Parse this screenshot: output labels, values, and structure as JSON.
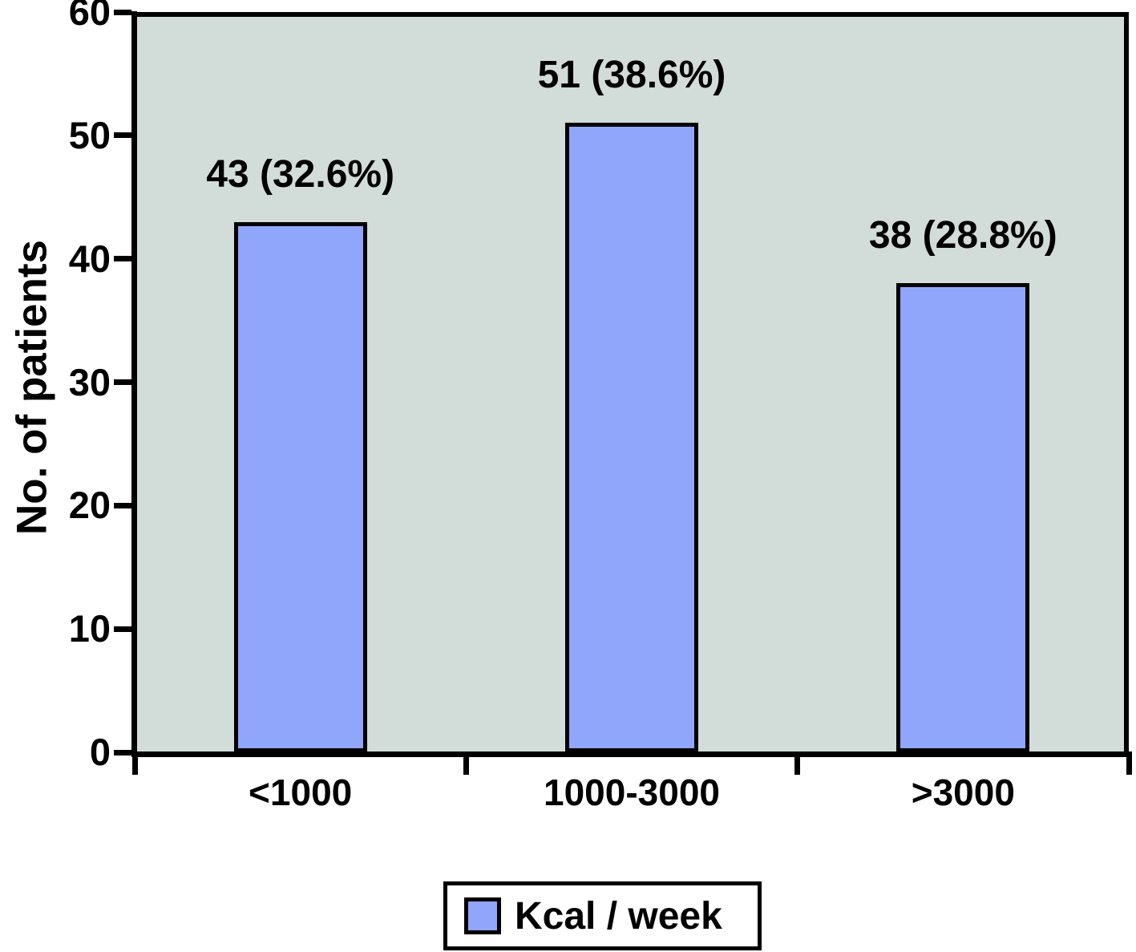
{
  "chart_data": {
    "type": "bar",
    "categories": [
      "<1000",
      "1000-3000",
      ">3000"
    ],
    "values": [
      43,
      51,
      38
    ],
    "bar_labels": [
      "43 (32.6%)",
      "51 (38.6%)",
      "38 (28.8%)"
    ],
    "title": "",
    "xlabel": "",
    "ylabel": "No. of patients",
    "ylim": [
      0,
      60
    ],
    "yticks": [
      0,
      10,
      20,
      30,
      40,
      50,
      60
    ],
    "grid": false,
    "legend": {
      "label": "Kcal / week",
      "position": "bottom-center"
    },
    "colors": {
      "bar_fill": "#8fa6fb",
      "plot_bg": "#d2dcd9",
      "axis": "#000000",
      "legend_bg": "#ffffff",
      "text": "#000000"
    }
  }
}
